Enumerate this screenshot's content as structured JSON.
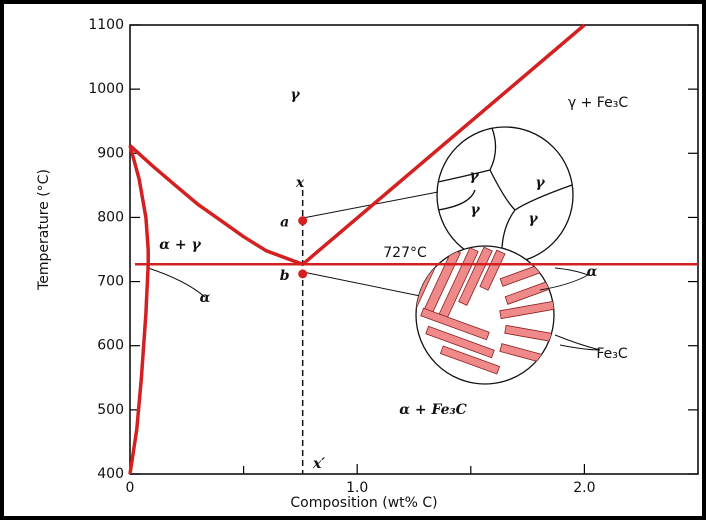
{
  "chart_data": {
    "type": "line",
    "x_label": "Composition (wt% C)",
    "y_label": "Temperature (°C)",
    "xlim": [
      0,
      2.5
    ],
    "ylim": [
      400,
      1100
    ],
    "xticks": [
      0,
      {
        "value": 1,
        "label": "1.0"
      },
      {
        "value": 2,
        "label": "2.0"
      }
    ],
    "x_minor_ticks": [
      0.5,
      1.5
    ],
    "yticks": [
      400,
      500,
      600,
      700,
      800,
      900,
      1000,
      1100
    ],
    "series": [
      {
        "color": "#d42020",
        "x": [
          0,
          0.1,
          0.2,
          0.3,
          0.4,
          0.5,
          0.6,
          0.76
        ],
        "values": [
          912,
          880,
          850,
          820,
          795,
          770,
          748,
          727
        ]
      },
      {
        "color": "#d42020",
        "x": [
          0.76,
          2.0
        ],
        "values": [
          727,
          1100
        ]
      },
      {
        "color": "#d42020",
        "x": [
          0.022,
          2.5
        ],
        "values": [
          727,
          727
        ]
      },
      {
        "color": "#d42020",
        "x": [
          0,
          0.04,
          0.07,
          0.08,
          0.08,
          0.07,
          0.05,
          0.03,
          0
        ],
        "values": [
          912,
          860,
          800,
          750,
          727,
          650,
          550,
          470,
          400
        ]
      }
    ],
    "reference_line_x": 0.76,
    "points": {
      "color": "#d42020",
      "x": [
        0.76,
        0.76
      ],
      "values": [
        795,
        712
      ],
      "labels": [
        "a",
        "b"
      ]
    },
    "annotations": [
      "γ",
      "γ + Fe₃C",
      "α + γ",
      "727°C",
      "α",
      "α + Fe₃C",
      "x",
      "x′",
      "Fe₃C",
      "α",
      "γ",
      "γ",
      "γ",
      "γ"
    ]
  }
}
